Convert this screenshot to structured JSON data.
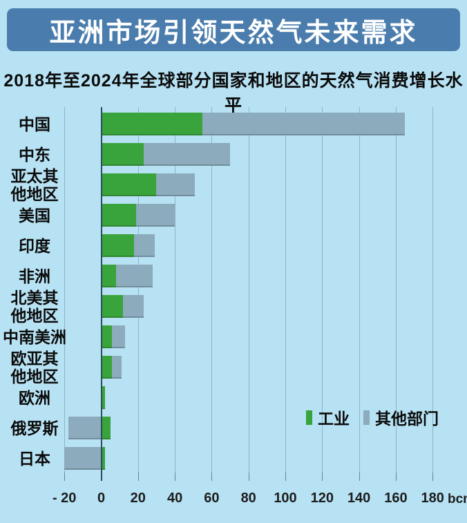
{
  "title": "亚洲市场引领天然气未来需求",
  "subtitle": "2018年至2024年全球部分国家和地区的天然气消费增长水平",
  "colors": {
    "page_bg": "#b7e2f3",
    "banner_bg": "#4a7dad",
    "industry": "#3aa43c",
    "other": "#8cabbc",
    "grid": "#8fb3c4",
    "zero_axis": "#2c4d5c"
  },
  "legend": [
    {
      "label": "工业",
      "color_key": "industry"
    },
    {
      "label": "其他部门",
      "color_key": "other"
    }
  ],
  "axis": {
    "unit": "bcm",
    "min": -20,
    "max": 180,
    "ticks": [
      -20,
      0,
      20,
      40,
      60,
      80,
      100,
      120,
      140,
      160,
      180
    ],
    "tick_labels": [
      "- 20",
      "0",
      "20",
      "40",
      "60",
      "80",
      "100",
      "120",
      "140",
      "160",
      "180"
    ]
  },
  "chart_data": {
    "type": "bar",
    "orientation": "horizontal",
    "stacked": true,
    "title": "亚洲市场引领天然气未来需求",
    "subtitle": "2018年至2024年全球部分国家和地区的天然气消费增长水平",
    "xlabel": "bcm",
    "xlim": [
      -20,
      180
    ],
    "grid": true,
    "legend_position": "bottom-right",
    "categories": [
      "中国",
      "中东",
      "亚太其他地区",
      "美国",
      "印度",
      "非洲",
      "北美其他地区",
      "中南美洲",
      "欧亚其他地区",
      "欧洲",
      "俄罗斯",
      "日本"
    ],
    "category_lines": [
      [
        "中国"
      ],
      [
        "中东"
      ],
      [
        "亚太其",
        "他地区"
      ],
      [
        "美国"
      ],
      [
        "印度"
      ],
      [
        "非洲"
      ],
      [
        "北美其",
        "他地区"
      ],
      [
        "中南美洲"
      ],
      [
        "欧亚其",
        "他地区"
      ],
      [
        "欧洲"
      ],
      [
        "俄罗斯"
      ],
      [
        "日本"
      ]
    ],
    "series": [
      {
        "name": "工业",
        "values": [
          55,
          23,
          30,
          19,
          18,
          8,
          12,
          6,
          6,
          2,
          5,
          2
        ]
      },
      {
        "name": "其他部门",
        "values": [
          110,
          47,
          21,
          21,
          11,
          20,
          11,
          7,
          5,
          0,
          -18,
          -20
        ]
      }
    ]
  }
}
